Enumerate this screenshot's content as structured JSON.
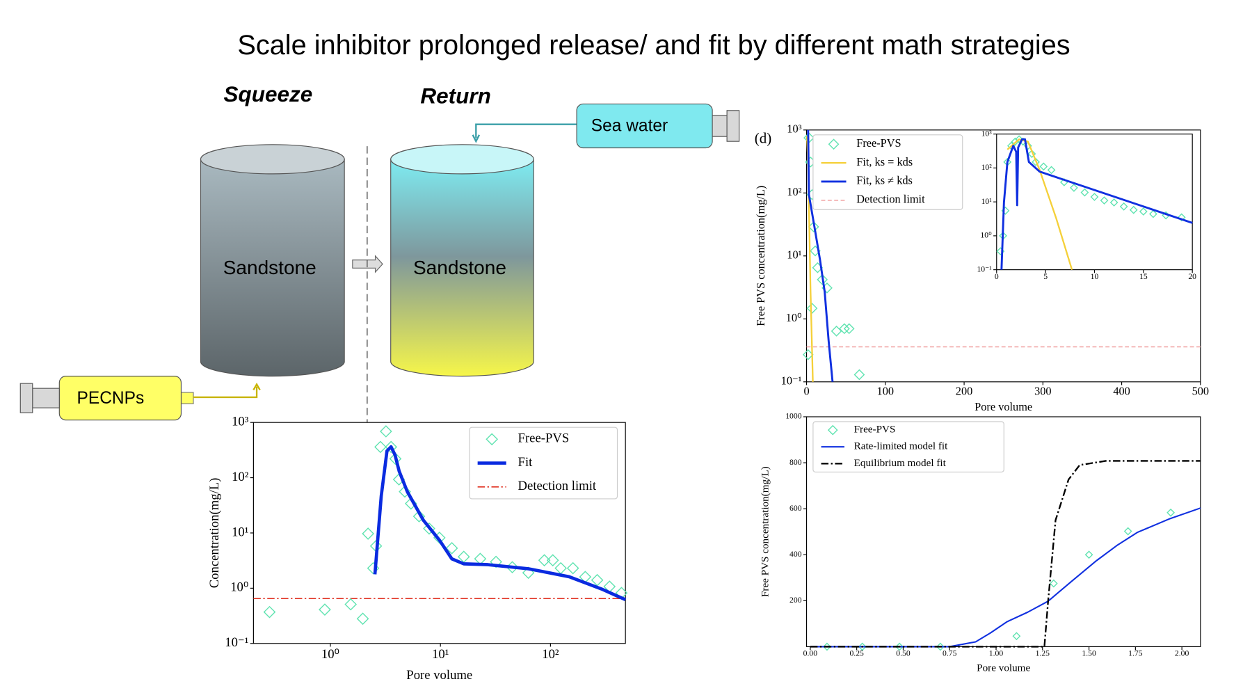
{
  "title": "Scale inhibitor prolonged release/ and fit by different math strategies",
  "diagram": {
    "squeeze": "Squeeze",
    "return": "Return",
    "sea_water": "Sea water",
    "left_rock": "Sandstone",
    "right_rock": "Sandstone",
    "injector": "PECNPs"
  },
  "chart_data": [
    {
      "type": "line",
      "x_label": "Pore volume",
      "y_label": "Concentration(mg/L)",
      "xlog": true,
      "ylog": true,
      "legend": "upper right",
      "xlim": [
        0.2,
        480
      ],
      "ylim": [
        0.1,
        1000
      ],
      "xticks": [
        {
          "value": 1,
          "label": "10⁰"
        },
        {
          "value": 10,
          "label": "10¹"
        },
        {
          "value": 100,
          "label": "10²"
        }
      ],
      "yticks": [
        {
          "value": 0.1,
          "label": "10⁻¹"
        },
        {
          "value": 1,
          "label": "10⁰"
        },
        {
          "value": 10,
          "label": "10¹"
        },
        {
          "value": 100,
          "label": "10²"
        },
        {
          "value": 1000,
          "label": "10³"
        }
      ],
      "series": [
        {
          "name": "Free-PVS",
          "mode": "markers",
          "color": "#5fe3b0",
          "x": [
            0.28,
            0.89,
            1.53,
            1.97,
            2.2,
            2.45,
            2.6,
            2.85,
            3.2,
            3.56,
            3.9,
            4.2,
            4.75,
            5.4,
            6.4,
            7.9,
            9.8,
            12.7,
            16.3,
            23,
            32,
            45,
            63,
            88,
            105,
            124,
            160,
            207,
            266,
            344,
            442
          ],
          "values": [
            0.37,
            0.41,
            0.51,
            0.28,
            9.7,
            2.3,
            5.8,
            360,
            690,
            360,
            220,
            93,
            56,
            34,
            20,
            12,
            8.2,
            5.3,
            3.7,
            3.4,
            3.0,
            2.4,
            1.9,
            3.2,
            3.2,
            2.3,
            2.3,
            1.6,
            1.4,
            1.07,
            0.82
          ]
        },
        {
          "name": "Fit",
          "mode": "lines",
          "color": "#0a2be0",
          "line_width": 4,
          "dash": "solid",
          "x": [
            2.54,
            2.9,
            3.27,
            3.56,
            3.87,
            4.22,
            5.0,
            7.0,
            9.8,
            12.7,
            16.3,
            27,
            63,
            148,
            290,
            480
          ],
          "values": [
            1.78,
            47,
            306,
            363,
            257,
            131,
            56,
            17,
            7.4,
            3.4,
            2.76,
            2.67,
            2.25,
            1.61,
            0.97,
            0.62
          ]
        }
      ],
      "detection_limit": {
        "name": "Detection limit",
        "value": 0.65,
        "color": "#e03020",
        "dash": "dashdot"
      }
    },
    {
      "type": "line",
      "panel_label": "(d)",
      "x_label": "Pore volume",
      "y_label": "Free PVS concentration(mg/L)",
      "xlog": false,
      "ylog": true,
      "legend": "upper left",
      "xlim": [
        0,
        500
      ],
      "ylim": [
        0.1,
        1000
      ],
      "xticks": [
        0,
        100,
        200,
        300,
        400,
        500
      ],
      "yticks": [
        {
          "value": 0.1,
          "label": "10⁻¹"
        },
        {
          "value": 1,
          "label": "10⁰"
        },
        {
          "value": 10,
          "label": "10¹"
        },
        {
          "value": 100,
          "label": "10²"
        },
        {
          "value": 1000,
          "label": "10³"
        }
      ],
      "series": [
        {
          "name": "Free-PVS",
          "mode": "markers",
          "color": "#5fe3b0",
          "x": [
            3,
            5,
            7,
            9,
            11,
            14,
            20,
            26,
            38,
            48,
            54,
            67,
            2,
            7
          ],
          "values": [
            750,
            310,
            94,
            29,
            12,
            6.5,
            4.2,
            3.1,
            0.64,
            0.7,
            0.7,
            0.13,
            0.27,
            1.47
          ]
        },
        {
          "name": "Fit, ks = kds",
          "mode": "lines",
          "color": "#f5d03a",
          "line_width": 2,
          "dash": "solid",
          "x": [
            0.5,
            2,
            5,
            8
          ],
          "values": [
            800,
            300,
            3,
            0.1
          ]
        },
        {
          "name": "Fit, ks ≠ kds",
          "mode": "lines",
          "color": "#1030e0",
          "line_width": 2.5,
          "dash": "solid",
          "x": [
            2,
            3,
            10,
            17,
            23,
            28,
            33
          ],
          "values": [
            1000,
            94,
            29,
            8.8,
            2.7,
            0.45,
            0.1
          ]
        }
      ],
      "detection_limit": {
        "name": "Detection limit",
        "value": 0.36,
        "color": "#f0a0a0",
        "dash": "dashed"
      }
    },
    {
      "type": "line",
      "xlog": false,
      "ylog": true,
      "xlim": [
        0,
        20
      ],
      "ylim": [
        0.1,
        1000
      ],
      "xticks": [
        0,
        5,
        10,
        15,
        20
      ],
      "yticks": [
        {
          "value": 0.1,
          "label": "10⁻¹"
        },
        {
          "value": 1,
          "label": "10⁰"
        },
        {
          "value": 10,
          "label": "10¹"
        },
        {
          "value": 100,
          "label": "10²"
        },
        {
          "value": 1000,
          "label": "10³"
        }
      ],
      "series": [
        {
          "mode": "markers",
          "color": "#5fe3b0",
          "x": [
            0.4,
            0.66,
            0.9,
            1.1,
            1.5,
            1.9,
            2.3,
            2.7,
            3.2,
            3.6,
            4.0,
            4.8,
            5.6,
            6.9,
            7.9,
            9,
            10,
            11,
            12,
            13,
            14,
            15,
            16,
            17.3,
            18.9
          ],
          "values": [
            0.35,
            1,
            5.5,
            150,
            450,
            600,
            700,
            600,
            450,
            260,
            150,
            110,
            87,
            38,
            26,
            19,
            14,
            11,
            9.6,
            7.3,
            5.8,
            5.2,
            4.4,
            4,
            3.5
          ]
        },
        {
          "mode": "lines",
          "color": "#f5d03a",
          "line_width": 2,
          "dash": "solid",
          "x": [
            1.1,
            2.3,
            3.2,
            4.4,
            6.1,
            7.7
          ],
          "values": [
            350,
            700,
            600,
            87,
            3.2,
            0.1
          ]
        },
        {
          "mode": "lines",
          "color": "#1030e0",
          "line_width": 2.5,
          "dash": "solid",
          "x": [
            0.5,
            0.75,
            1.1,
            1.7,
            2.0,
            2.1,
            2.2,
            2.6,
            2.9,
            3.3,
            4.4,
            20
          ],
          "values": [
            0.1,
            9.6,
            150,
            450,
            300,
            8,
            400,
            700,
            700,
            150,
            78,
            2.4
          ]
        }
      ]
    },
    {
      "type": "line",
      "x_label": "Pore volume",
      "y_label": "Free PVS concentration(mg/L)",
      "xlog": false,
      "ylog": false,
      "legend": "upper left",
      "xlim": [
        -0.02,
        2.1
      ],
      "ylim": [
        0,
        1000
      ],
      "xticks": [
        {
          "value": 0,
          "label": "0.00"
        },
        {
          "value": 0.25,
          "label": "0.25"
        },
        {
          "value": 0.5,
          "label": "0.50"
        },
        {
          "value": 0.75,
          "label": "0.75"
        },
        {
          "value": 1,
          "label": "1.00"
        },
        {
          "value": 1.25,
          "label": "1.25"
        },
        {
          "value": 1.5,
          "label": "1.50"
        },
        {
          "value": 1.75,
          "label": "1.75"
        },
        {
          "value": 2,
          "label": "2.00"
        }
      ],
      "yticks": [
        200,
        400,
        600,
        800,
        1000
      ],
      "series": [
        {
          "name": "Free-PVS",
          "mode": "markers",
          "color": "#5fe3b0",
          "x": [
            0.09,
            0.28,
            0.48,
            0.7,
            1.11,
            1.31,
            1.5,
            1.71,
            1.94
          ],
          "values": [
            0,
            0,
            0,
            0,
            46,
            275,
            400,
            502,
            583
          ]
        },
        {
          "name": "Rate-limited model fit",
          "mode": "lines",
          "color": "#1030e0",
          "line_width": 1.8,
          "dash": "solid",
          "x": [
            0,
            0.75,
            0.89,
            0.97,
            1.06,
            1.17,
            1.28,
            1.4,
            1.54,
            1.65,
            1.76,
            1.93,
            2.1
          ],
          "values": [
            0,
            0,
            21,
            60,
            109,
            150,
            198,
            280,
            374,
            440,
            497,
            555,
            603
          ]
        },
        {
          "name": "Equilibrium model fit",
          "mode": "lines",
          "color": "#000000",
          "line_width": 2,
          "dash": "dashdot",
          "x": [
            0,
            1.26,
            1.28,
            1.32,
            1.39,
            1.45,
            1.59,
            2.1
          ],
          "values": [
            0,
            0,
            198,
            550,
            727,
            790,
            808,
            808
          ]
        }
      ]
    }
  ]
}
